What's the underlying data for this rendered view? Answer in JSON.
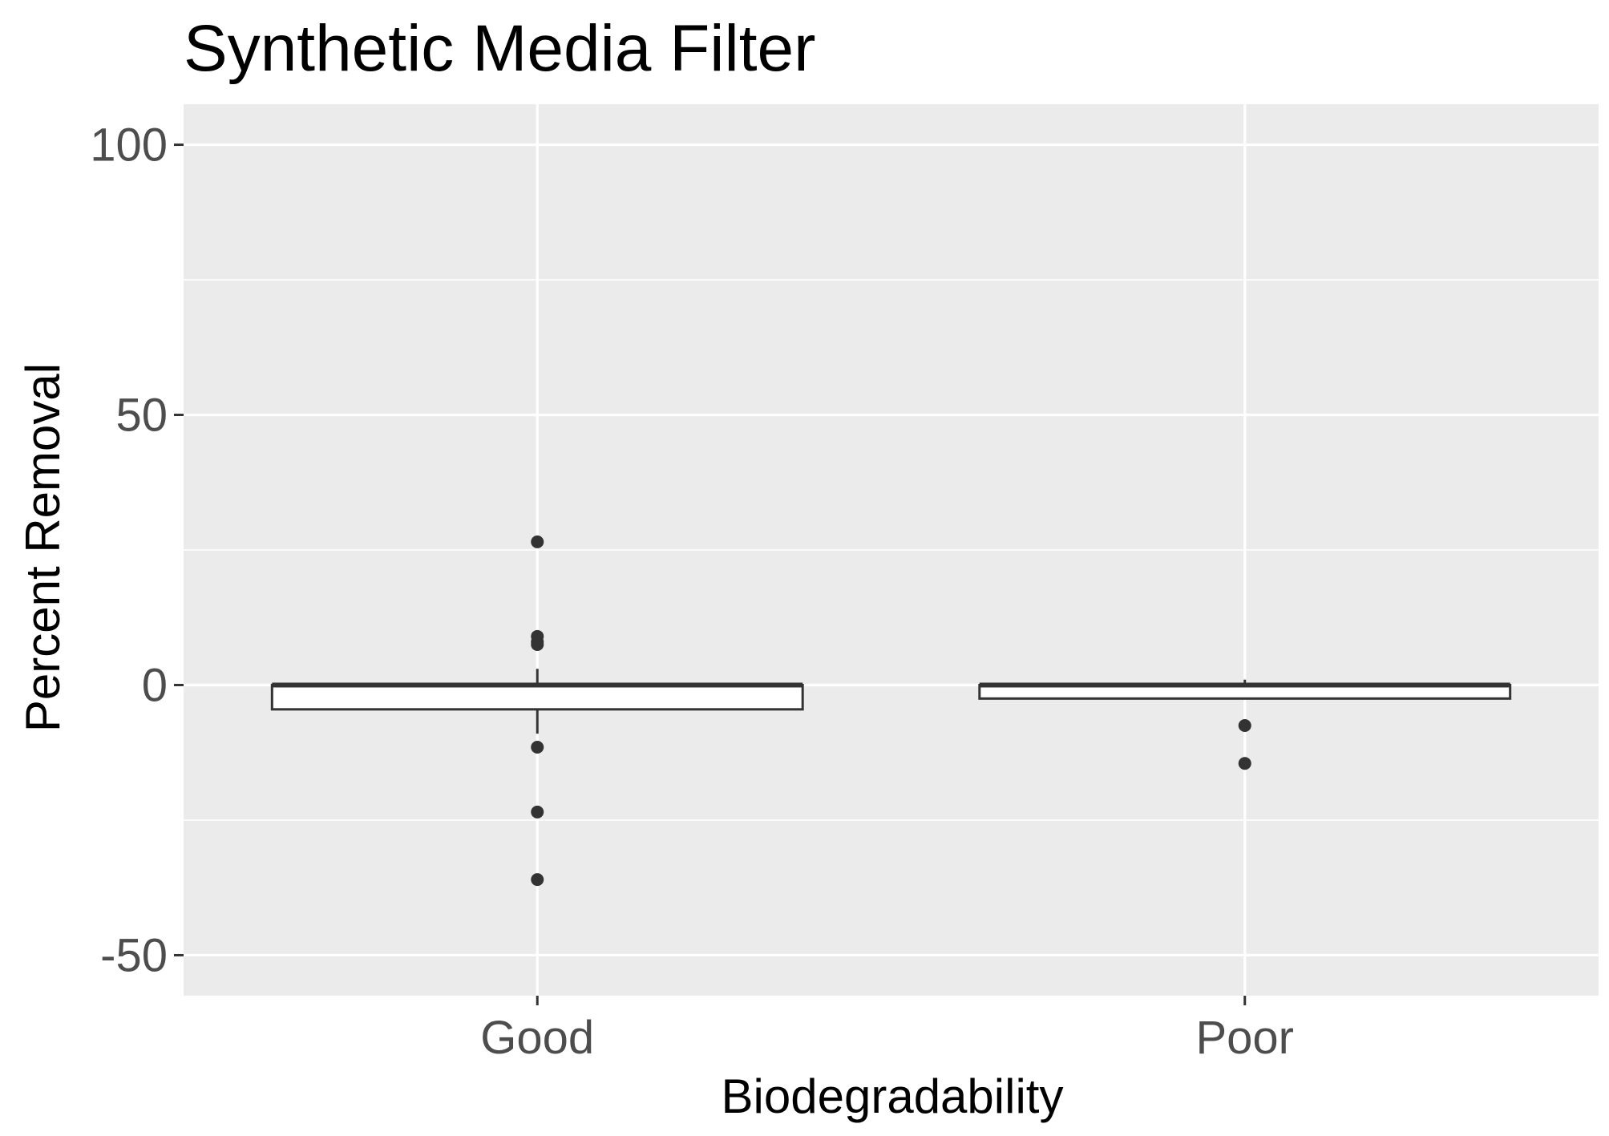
{
  "chart_data": {
    "type": "boxplot",
    "title": "Synthetic Media Filter",
    "xlabel": "Biodegradability",
    "ylabel": "Percent Removal",
    "ylim": [
      -57.5,
      107.5
    ],
    "y_ticks": [
      -50,
      0,
      50,
      100
    ],
    "y_tick_labels": [
      "-50",
      "0",
      "50",
      "100"
    ],
    "y_minor_gridlines": [
      -25,
      25,
      75
    ],
    "categories": [
      "Good",
      "Poor"
    ],
    "grid": true,
    "colors": {
      "panel_background": "#EBEBEB",
      "gridline": "#FFFFFF",
      "box_fill": "#FFFFFF",
      "box_stroke": "#333333",
      "point": "#333333",
      "tick": "#333333"
    },
    "boxes": [
      {
        "category": "Good",
        "lower_whisker": -9,
        "q1": -4.5,
        "median": 0,
        "q3": 0,
        "upper_whisker": 3,
        "outliers": [
          26.5,
          9,
          8,
          7.5,
          -11.5,
          -23.5,
          -36
        ]
      },
      {
        "category": "Poor",
        "lower_whisker": -2.5,
        "q1": -2.5,
        "median": 0,
        "q3": 0,
        "upper_whisker": 1,
        "outliers": [
          -7.5,
          -14.5
        ]
      }
    ]
  }
}
